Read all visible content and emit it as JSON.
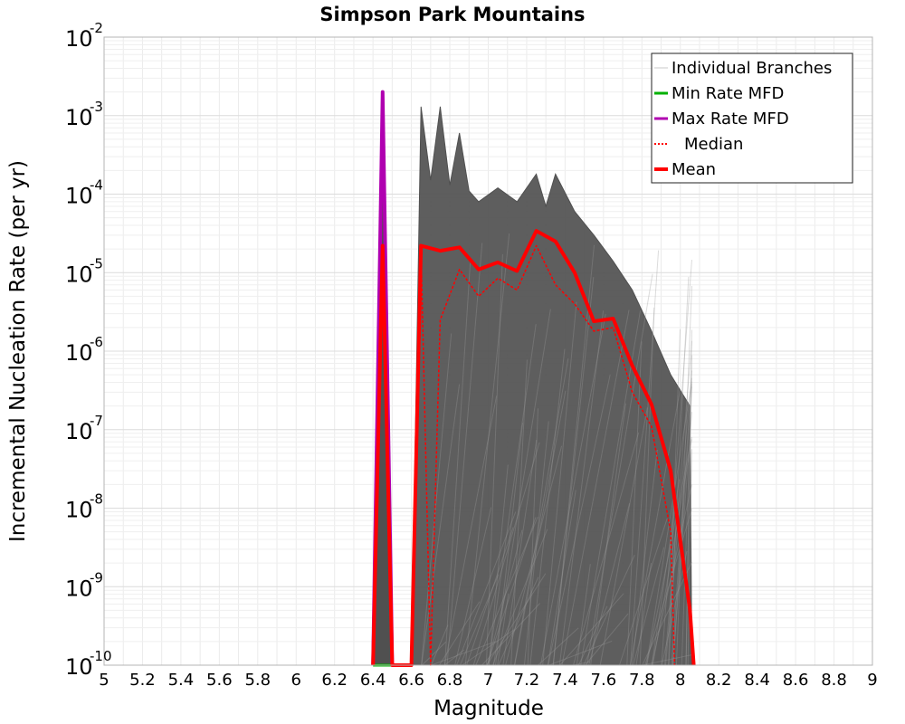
{
  "chart_data": {
    "type": "line",
    "title": "Simpson Park Mountains",
    "xlabel": "Magnitude",
    "ylabel": "Incremental Nucleation Rate (per yr)",
    "xlim": [
      5,
      9
    ],
    "ylim": [
      1e-10,
      0.01
    ],
    "yscale": "log",
    "grid": true,
    "legend_position": "top-right",
    "x_ticks": [
      "5",
      "5.2",
      "5.4",
      "5.6",
      "5.8",
      "6",
      "6.2",
      "6.4",
      "6.6",
      "6.8",
      "7",
      "7.2",
      "7.4",
      "7.6",
      "7.8",
      "8",
      "8.2",
      "8.4",
      "8.6",
      "8.8",
      "9"
    ],
    "y_ticks": [
      {
        "base": "10",
        "exp": "-10"
      },
      {
        "base": "10",
        "exp": "-9"
      },
      {
        "base": "10",
        "exp": "-8"
      },
      {
        "base": "10",
        "exp": "-7"
      },
      {
        "base": "10",
        "exp": "-6"
      },
      {
        "base": "10",
        "exp": "-5"
      },
      {
        "base": "10",
        "exp": "-4"
      },
      {
        "base": "10",
        "exp": "-3"
      },
      {
        "base": "10",
        "exp": "-2"
      }
    ],
    "legend": [
      {
        "label": "Individual Branches",
        "color": "#c8c8c8",
        "style": "solid",
        "key": "branches"
      },
      {
        "label": "Min Rate MFD",
        "color": "#00b000",
        "style": "solid",
        "key": "min"
      },
      {
        "label": "Max Rate MFD",
        "color": "#b000b0",
        "style": "solid",
        "key": "max"
      },
      {
        "label": "Median",
        "color": "#ff0000",
        "style": "dotted",
        "key": "median"
      },
      {
        "label": "Mean",
        "color": "#ff0000",
        "style": "thick",
        "key": "mean"
      }
    ],
    "series": [
      {
        "name": "Max Rate MFD",
        "color": "#b000b0",
        "points": [
          [
            6.4,
            1e-10
          ],
          [
            6.45,
            0.002
          ],
          [
            6.5,
            1e-10
          ]
        ]
      },
      {
        "name": "Min Rate MFD",
        "color": "#00b000",
        "points": [
          [
            6.4,
            1e-10
          ],
          [
            6.45,
            1e-10
          ],
          [
            6.5,
            1e-10
          ]
        ]
      },
      {
        "name": "Mean",
        "color": "#ff0000",
        "points": [
          [
            6.4,
            1e-10
          ],
          [
            6.45,
            2.2e-05
          ],
          [
            6.5,
            1e-10
          ],
          [
            6.6,
            1e-10
          ],
          [
            6.65,
            2.2e-05
          ],
          [
            6.75,
            1.9e-05
          ],
          [
            6.85,
            2.1e-05
          ],
          [
            6.95,
            1.1e-05
          ],
          [
            7.05,
            1.35e-05
          ],
          [
            7.15,
            1.05e-05
          ],
          [
            7.25,
            3.4e-05
          ],
          [
            7.35,
            2.5e-05
          ],
          [
            7.45,
            1e-05
          ],
          [
            7.55,
            2.4e-06
          ],
          [
            7.65,
            2.6e-06
          ],
          [
            7.75,
            6.5e-07
          ],
          [
            7.85,
            2.1e-07
          ],
          [
            7.95,
            3e-08
          ],
          [
            8.05,
            5e-10
          ],
          [
            8.07,
            1e-10
          ]
        ]
      },
      {
        "name": "Median",
        "color": "#ff0000",
        "points": [
          [
            6.4,
            1e-10
          ],
          [
            6.45,
            2e-05
          ],
          [
            6.5,
            1e-10
          ],
          [
            6.6,
            1e-10
          ],
          [
            6.65,
            2e-05
          ],
          [
            6.7,
            1e-10
          ],
          [
            6.75,
            2.5e-06
          ],
          [
            6.85,
            1.1e-05
          ],
          [
            6.95,
            5e-06
          ],
          [
            7.05,
            8.5e-06
          ],
          [
            7.15,
            6e-06
          ],
          [
            7.25,
            2.2e-05
          ],
          [
            7.35,
            7e-06
          ],
          [
            7.45,
            4e-06
          ],
          [
            7.55,
            1.8e-06
          ],
          [
            7.65,
            2e-06
          ],
          [
            7.75,
            3e-07
          ],
          [
            7.85,
            1.1e-07
          ],
          [
            7.95,
            5e-09
          ],
          [
            7.97,
            1e-10
          ]
        ]
      }
    ],
    "branch_envelope": {
      "color": "#505050",
      "upper": [
        [
          6.6,
          1e-10
        ],
        [
          6.65,
          0.0013
        ],
        [
          6.7,
          0.00015
        ],
        [
          6.75,
          0.0013
        ],
        [
          6.8,
          0.00013
        ],
        [
          6.85,
          0.0006
        ],
        [
          6.9,
          0.00011
        ],
        [
          6.95,
          8e-05
        ],
        [
          7.05,
          0.00012
        ],
        [
          7.15,
          8e-05
        ],
        [
          7.25,
          0.00018
        ],
        [
          7.3,
          7e-05
        ],
        [
          7.35,
          0.00018
        ],
        [
          7.45,
          6e-05
        ],
        [
          7.55,
          3e-05
        ],
        [
          7.65,
          1.4e-05
        ],
        [
          7.75,
          6e-06
        ],
        [
          7.85,
          1.8e-06
        ],
        [
          7.95,
          5e-07
        ],
        [
          8.05,
          2e-07
        ],
        [
          8.06,
          1e-10
        ]
      ],
      "lower": [
        [
          6.6,
          1e-10
        ],
        [
          8.06,
          1e-10
        ]
      ],
      "spikes": [
        [
          6.45,
          0.0001
        ]
      ]
    }
  }
}
